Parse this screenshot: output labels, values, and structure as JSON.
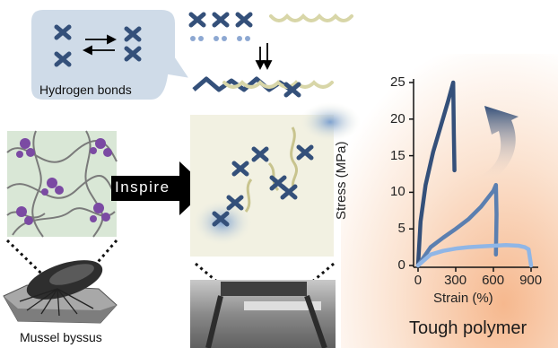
{
  "labels": {
    "hydrogen_bonds": "Hydrogen bonds",
    "inspire": "Inspire",
    "mussel": "Mussel byssus",
    "tough_polymer": "Tough polymer"
  },
  "colors": {
    "primary_blue": "#34507a",
    "light_blue": "#90b6e6",
    "tan_chain": "#d8d6a8",
    "bubble": "#cfdbe8",
    "panel_bg": "#f2f1e2",
    "peach_bg": "#f7c6a2"
  },
  "chart_data": {
    "type": "line",
    "xlabel": "Strain (%)",
    "ylabel": "Stress (MPa)",
    "xlim": [
      0,
      900
    ],
    "ylim": [
      0,
      25
    ],
    "xticks": [
      "0",
      "300",
      "600",
      "900"
    ],
    "yticks": [
      "0",
      "5",
      "10",
      "15",
      "20",
      "25"
    ],
    "series": [
      {
        "color": "#34507a",
        "x": [
          0,
          20,
          60,
          120,
          180,
          240,
          280,
          285,
          290
        ],
        "y": [
          0,
          6,
          11,
          15.5,
          19,
          22.5,
          25,
          18,
          13
        ]
      },
      {
        "color": "#5b7fb0",
        "x": [
          0,
          100,
          200,
          300,
          400,
          500,
          600,
          620,
          625,
          620
        ],
        "y": [
          0,
          2.5,
          3.8,
          5,
          6.3,
          8,
          10.2,
          11,
          7,
          1.5
        ]
      },
      {
        "color": "#90b6e6",
        "x": [
          0,
          100,
          200,
          300,
          400,
          500,
          600,
          700,
          800,
          850,
          880,
          900
        ],
        "y": [
          0,
          1.5,
          2,
          2.3,
          2.5,
          2.6,
          2.7,
          2.8,
          2.7,
          2.5,
          2.2,
          0
        ]
      }
    ]
  }
}
